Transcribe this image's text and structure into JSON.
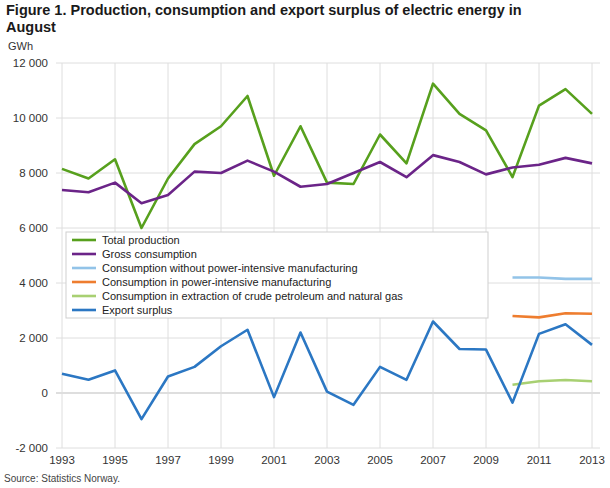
{
  "chart_data": {
    "type": "line",
    "title": "Figure 1. Production, consumption and export surplus of electric energy in August",
    "ylabel": "GWh",
    "source": "Source: Statistics Norway.",
    "x": [
      1993,
      1994,
      1995,
      1996,
      1997,
      1998,
      1999,
      2000,
      2001,
      2002,
      2003,
      2004,
      2005,
      2006,
      2007,
      2008,
      2009,
      2010,
      2011,
      2012,
      2013
    ],
    "xlim": [
      1993,
      2013
    ],
    "xticks": [
      1993,
      1995,
      1997,
      1999,
      2001,
      2003,
      2005,
      2007,
      2009,
      2011,
      2013
    ],
    "ylim": [
      -2000,
      12000
    ],
    "yticks": [
      {
        "value": -2000,
        "label": "-2 000"
      },
      0,
      {
        "value": 2000,
        "label": "2 000"
      },
      {
        "value": 4000,
        "label": "4 000"
      },
      {
        "value": 6000,
        "label": "6 000"
      },
      {
        "value": 8000,
        "label": "8 000"
      },
      {
        "value": 10000,
        "label": "10 000"
      },
      {
        "value": 12000,
        "label": "12 000"
      }
    ],
    "grid": true,
    "legend": "left",
    "series": [
      {
        "name": "Total production",
        "color": "#57a01d",
        "values": [
          8150,
          7800,
          8500,
          6000,
          7800,
          9050,
          9700,
          10800,
          7900,
          9700,
          7650,
          7600,
          9400,
          8350,
          11250,
          10150,
          9550,
          7850,
          10450,
          11050,
          10150
        ]
      },
      {
        "name": "Gross consumption",
        "color": "#6b2488",
        "values": [
          7380,
          7300,
          7650,
          6900,
          7200,
          8050,
          8000,
          8450,
          8050,
          7500,
          7600,
          8000,
          8400,
          7850,
          8650,
          8400,
          7950,
          8200,
          8300,
          8550,
          8350
        ]
      },
      {
        "name": "Consumption without power-intensive manufacturing",
        "color": "#92c3e8",
        "values": [
          null,
          null,
          null,
          null,
          null,
          null,
          null,
          null,
          null,
          null,
          null,
          null,
          null,
          null,
          null,
          null,
          null,
          4200,
          4200,
          4150,
          4150
        ]
      },
      {
        "name": "Consumption in power-intensive manufacturing",
        "color": "#ee7d2f",
        "values": [
          null,
          null,
          null,
          null,
          null,
          null,
          null,
          null,
          null,
          null,
          null,
          null,
          null,
          null,
          null,
          null,
          null,
          2800,
          2750,
          2900,
          2880
        ]
      },
      {
        "name": "Consumption in extraction of crude petroleum and natural gas",
        "color": "#a8d072",
        "values": [
          null,
          null,
          null,
          null,
          null,
          null,
          null,
          null,
          null,
          null,
          null,
          null,
          null,
          null,
          null,
          null,
          null,
          300,
          430,
          470,
          430
        ]
      },
      {
        "name": "Export surplus",
        "color": "#2b77c3",
        "values": [
          700,
          480,
          820,
          -950,
          600,
          950,
          1700,
          2300,
          -150,
          2200,
          50,
          -430,
          950,
          480,
          2600,
          1600,
          1580,
          -350,
          2150,
          2500,
          1750
        ]
      }
    ]
  }
}
